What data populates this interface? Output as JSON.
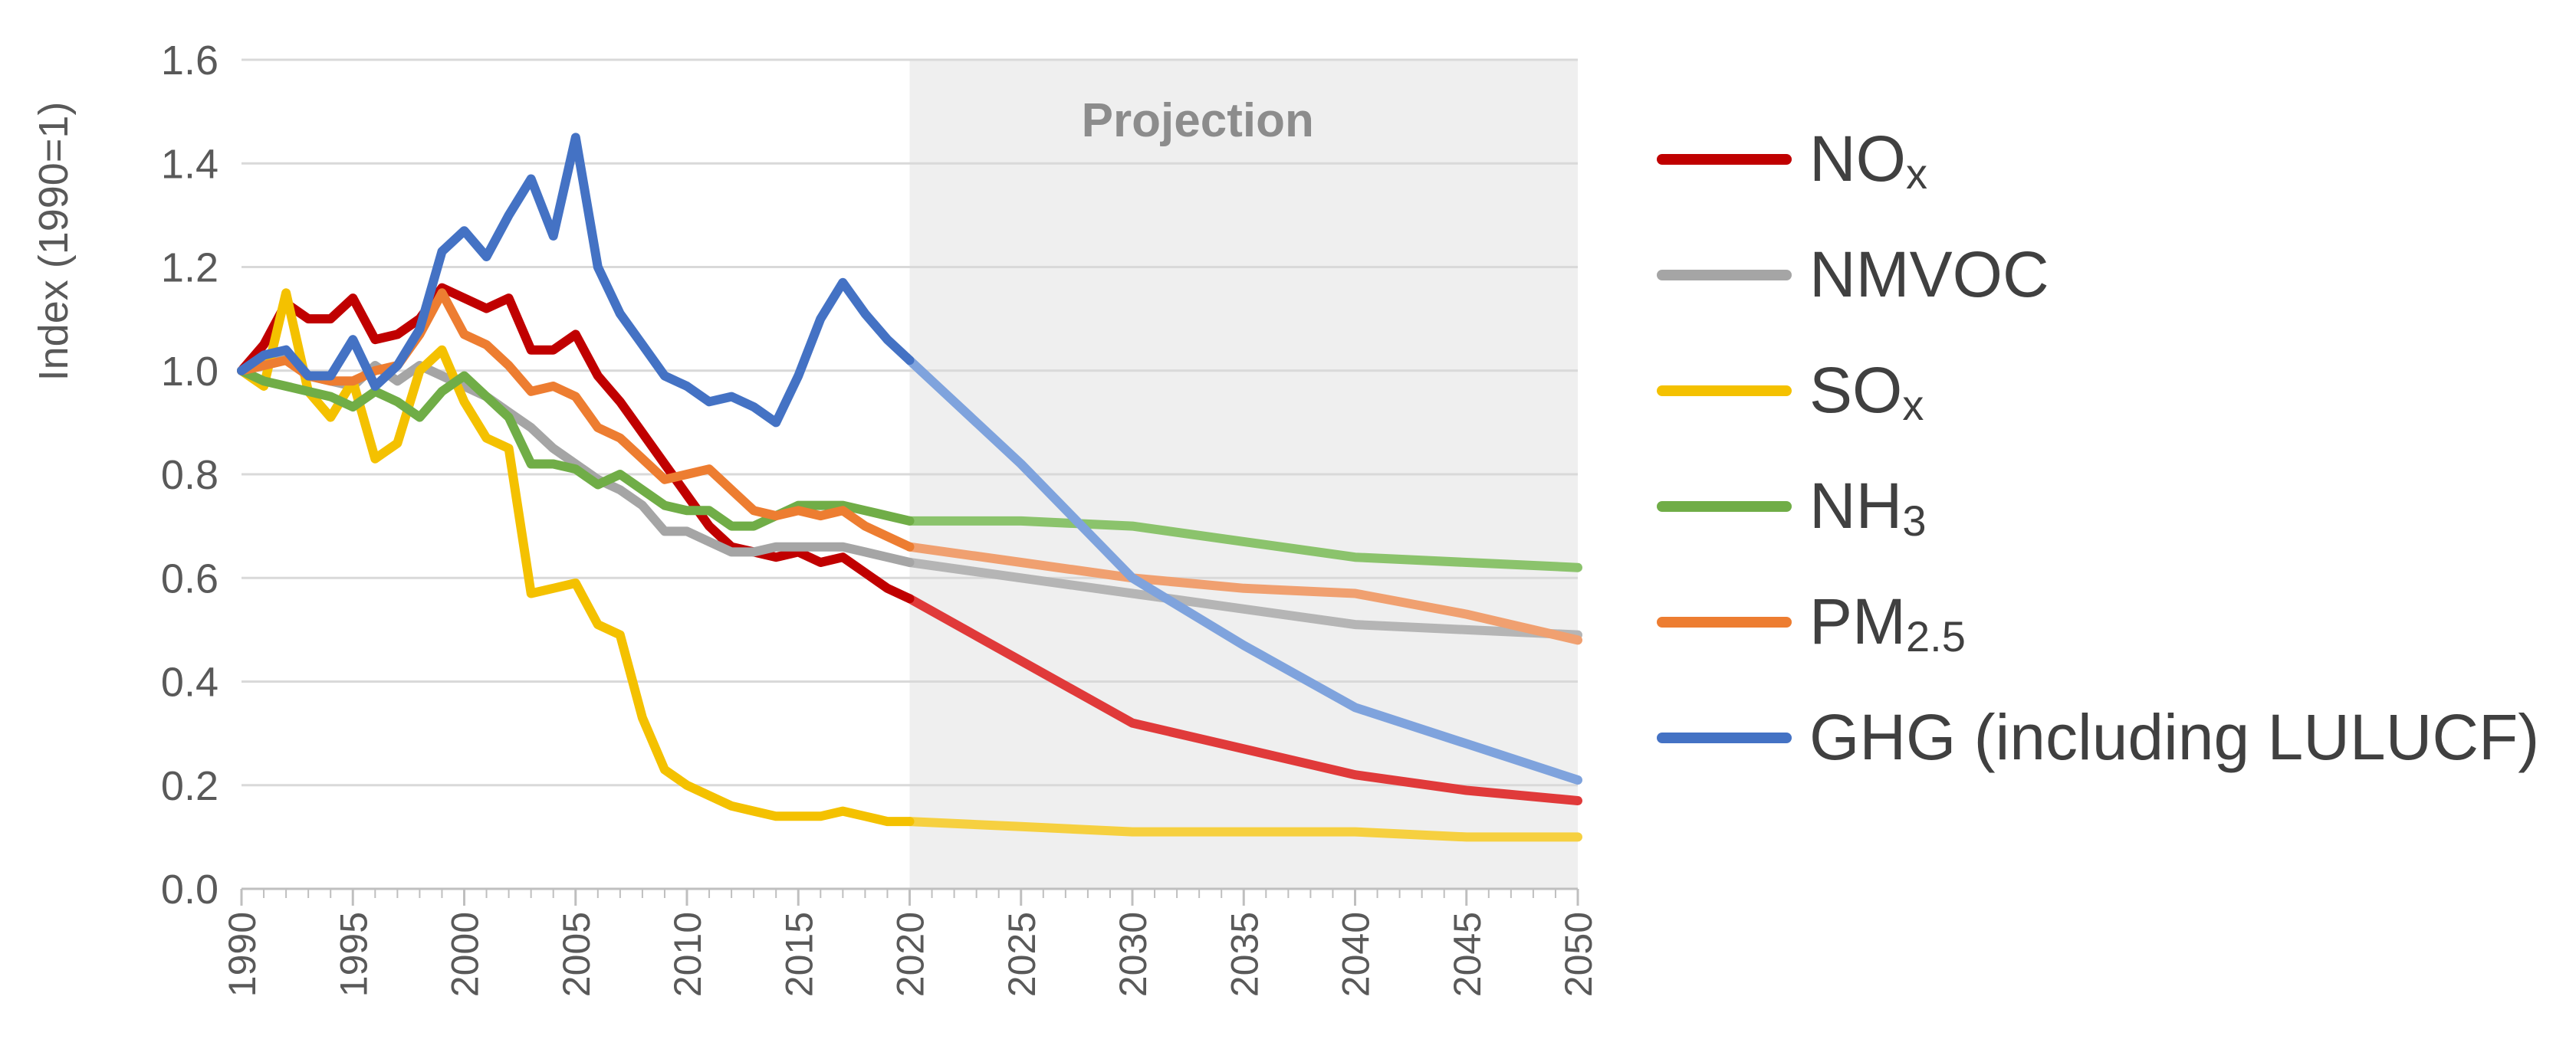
{
  "chart_data": {
    "type": "line",
    "title": "",
    "xlabel": "",
    "ylabel": "Index (1990=1)",
    "xlim": [
      1990,
      2050
    ],
    "ylim": [
      0,
      1.6
    ],
    "yticks": [
      0.0,
      0.2,
      0.4,
      0.6,
      0.8,
      1.0,
      1.2,
      1.4,
      1.6
    ],
    "ytick_labels": [
      "0.0",
      "0.2",
      "0.4",
      "0.6",
      "0.8",
      "1.0",
      "1.2",
      "1.4",
      "1.6"
    ],
    "xticks": [
      1990,
      1995,
      2000,
      2005,
      2010,
      2015,
      2020,
      2025,
      2030,
      2035,
      2040,
      2045,
      2050
    ],
    "xtick_labels": [
      "1990",
      "1995",
      "2000",
      "2005",
      "2010",
      "2015",
      "2020",
      "2025",
      "2030",
      "2035",
      "2040",
      "2045",
      "2050"
    ],
    "grid": "horizontal",
    "legend_position": "right",
    "projection": {
      "label": "Projection",
      "start": 2020,
      "end": 2050
    },
    "series": [
      {
        "name": "NOx",
        "label_main": "NO",
        "label_sub": "x",
        "color": "#c00000",
        "projection_color": "#e03a3a",
        "x": [
          1990,
          1991,
          1992,
          1993,
          1994,
          1995,
          1996,
          1997,
          1998,
          1999,
          2000,
          2001,
          2002,
          2003,
          2004,
          2005,
          2006,
          2007,
          2008,
          2009,
          2010,
          2011,
          2012,
          2013,
          2014,
          2015,
          2016,
          2017,
          2018,
          2019,
          2020,
          2025,
          2030,
          2035,
          2040,
          2045,
          2050
        ],
        "values": [
          1.0,
          1.05,
          1.13,
          1.1,
          1.1,
          1.14,
          1.06,
          1.07,
          1.1,
          1.16,
          1.14,
          1.12,
          1.14,
          1.04,
          1.04,
          1.07,
          0.99,
          0.94,
          0.88,
          0.82,
          0.76,
          0.7,
          0.66,
          0.65,
          0.64,
          0.65,
          0.63,
          0.64,
          0.61,
          0.58,
          0.56,
          0.44,
          0.32,
          0.27,
          0.22,
          0.19,
          0.17
        ]
      },
      {
        "name": "NMVOC",
        "label_main": "NMVOC",
        "label_sub": "",
        "color": "#a5a5a5",
        "projection_color": "#b5b5b5",
        "x": [
          1990,
          1991,
          1992,
          1993,
          1994,
          1995,
          1996,
          1997,
          1998,
          1999,
          2000,
          2001,
          2002,
          2003,
          2004,
          2005,
          2006,
          2007,
          2008,
          2009,
          2010,
          2011,
          2012,
          2013,
          2014,
          2015,
          2016,
          2017,
          2018,
          2019,
          2020,
          2025,
          2030,
          2035,
          2040,
          2045,
          2050
        ],
        "values": [
          1.0,
          1.01,
          1.04,
          0.99,
          0.98,
          0.97,
          1.01,
          0.98,
          1.01,
          0.99,
          0.97,
          0.95,
          0.92,
          0.89,
          0.85,
          0.82,
          0.79,
          0.77,
          0.74,
          0.69,
          0.69,
          0.67,
          0.65,
          0.65,
          0.66,
          0.66,
          0.66,
          0.66,
          0.65,
          0.64,
          0.63,
          0.6,
          0.57,
          0.54,
          0.51,
          0.5,
          0.49
        ]
      },
      {
        "name": "SOx",
        "label_main": "SO",
        "label_sub": "x",
        "color": "#f4c100",
        "projection_color": "#f6d040",
        "x": [
          1990,
          1991,
          1992,
          1993,
          1994,
          1995,
          1996,
          1997,
          1998,
          1999,
          2000,
          2001,
          2002,
          2003,
          2004,
          2005,
          2006,
          2007,
          2008,
          2009,
          2010,
          2011,
          2012,
          2013,
          2014,
          2015,
          2016,
          2017,
          2018,
          2019,
          2020,
          2025,
          2030,
          2035,
          2040,
          2045,
          2050
        ],
        "values": [
          1.0,
          0.97,
          1.15,
          0.96,
          0.91,
          0.98,
          0.83,
          0.86,
          1.0,
          1.04,
          0.94,
          0.87,
          0.85,
          0.57,
          0.58,
          0.59,
          0.51,
          0.49,
          0.33,
          0.23,
          0.2,
          0.18,
          0.16,
          0.15,
          0.14,
          0.14,
          0.14,
          0.15,
          0.14,
          0.13,
          0.13,
          0.12,
          0.11,
          0.11,
          0.11,
          0.1,
          0.1
        ]
      },
      {
        "name": "NH3",
        "label_main": "NH",
        "label_sub": "3",
        "color": "#70ad47",
        "projection_color": "#8bc36c",
        "x": [
          1990,
          1991,
          1992,
          1993,
          1994,
          1995,
          1996,
          1997,
          1998,
          1999,
          2000,
          2001,
          2002,
          2003,
          2004,
          2005,
          2006,
          2007,
          2008,
          2009,
          2010,
          2011,
          2012,
          2013,
          2014,
          2015,
          2016,
          2017,
          2018,
          2019,
          2020,
          2025,
          2030,
          2035,
          2040,
          2045,
          2050
        ],
        "values": [
          1.0,
          0.98,
          0.97,
          0.96,
          0.95,
          0.93,
          0.96,
          0.94,
          0.91,
          0.96,
          0.99,
          0.95,
          0.91,
          0.82,
          0.82,
          0.81,
          0.78,
          0.8,
          0.77,
          0.74,
          0.73,
          0.73,
          0.7,
          0.7,
          0.72,
          0.74,
          0.74,
          0.74,
          0.73,
          0.72,
          0.71,
          0.71,
          0.7,
          0.67,
          0.64,
          0.63,
          0.62
        ]
      },
      {
        "name": "PM2.5",
        "label_main": "PM",
        "label_sub": "2.5",
        "color": "#ed7d31",
        "projection_color": "#f0a070",
        "x": [
          1990,
          1991,
          1992,
          1993,
          1994,
          1995,
          1996,
          1997,
          1998,
          1999,
          2000,
          2001,
          2002,
          2003,
          2004,
          2005,
          2006,
          2007,
          2008,
          2009,
          2010,
          2011,
          2012,
          2013,
          2014,
          2015,
          2016,
          2017,
          2018,
          2019,
          2020,
          2025,
          2030,
          2035,
          2040,
          2045,
          2050
        ],
        "values": [
          1.0,
          1.01,
          1.02,
          0.99,
          0.98,
          0.98,
          1.0,
          1.01,
          1.07,
          1.15,
          1.07,
          1.05,
          1.01,
          0.96,
          0.97,
          0.95,
          0.89,
          0.87,
          0.83,
          0.79,
          0.8,
          0.81,
          0.77,
          0.73,
          0.72,
          0.73,
          0.72,
          0.73,
          0.7,
          0.68,
          0.66,
          0.63,
          0.6,
          0.58,
          0.57,
          0.53,
          0.48
        ]
      },
      {
        "name": "GHG (including LULUCF)",
        "label_main": "GHG (including LULUCF)",
        "label_sub": "",
        "color": "#4472c4",
        "projection_color": "#7fa3dd",
        "x": [
          1990,
          1991,
          1992,
          1993,
          1994,
          1995,
          1996,
          1997,
          1998,
          1999,
          2000,
          2001,
          2002,
          2003,
          2004,
          2005,
          2006,
          2007,
          2008,
          2009,
          2010,
          2011,
          2012,
          2013,
          2014,
          2015,
          2016,
          2017,
          2018,
          2019,
          2020,
          2025,
          2030,
          2035,
          2040,
          2045,
          2050
        ],
        "values": [
          1.0,
          1.03,
          1.04,
          0.99,
          0.99,
          1.06,
          0.97,
          1.01,
          1.08,
          1.23,
          1.27,
          1.22,
          1.3,
          1.37,
          1.26,
          1.45,
          1.2,
          1.11,
          1.05,
          0.99,
          0.97,
          0.94,
          0.95,
          0.93,
          0.9,
          0.99,
          1.1,
          1.17,
          1.11,
          1.06,
          1.02,
          0.82,
          0.6,
          0.47,
          0.35,
          0.28,
          0.21
        ]
      }
    ]
  }
}
